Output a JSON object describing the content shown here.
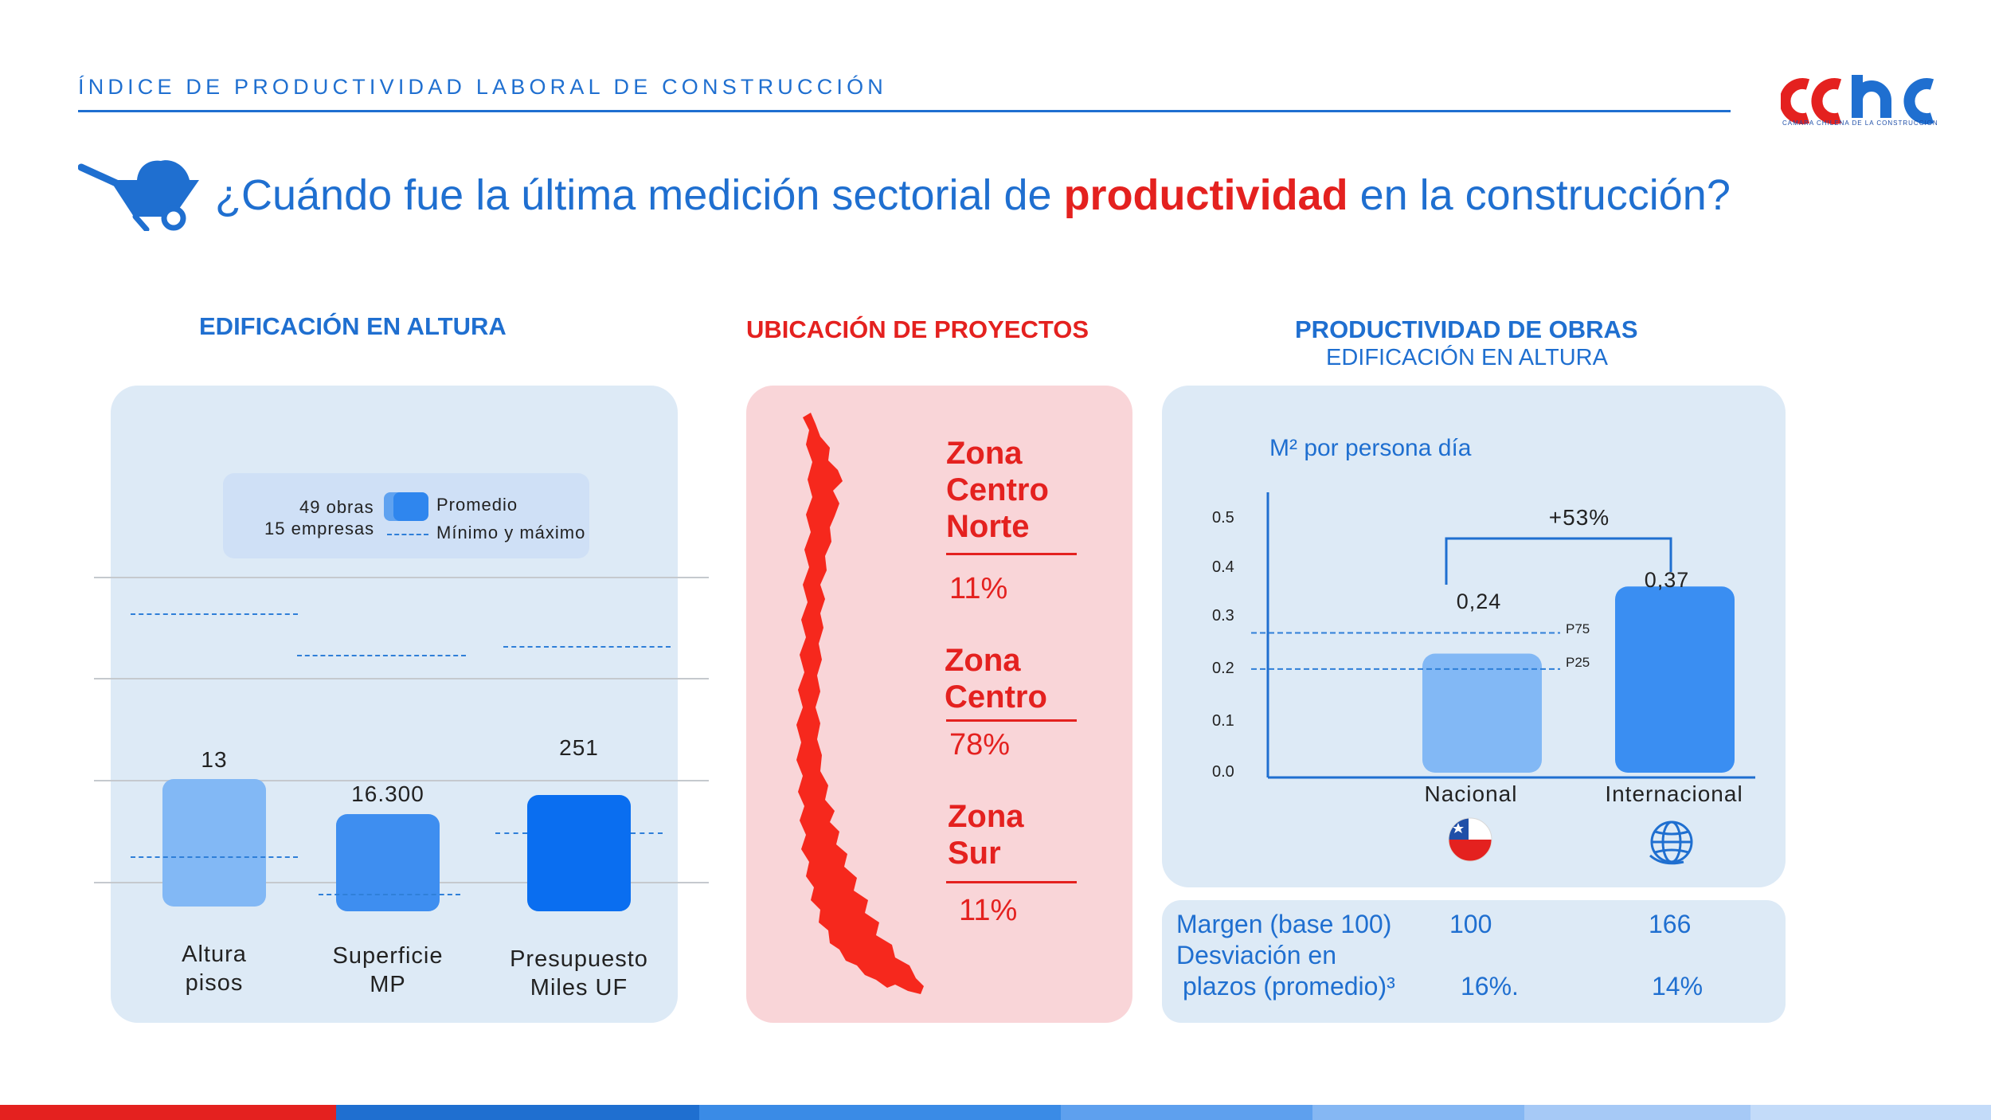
{
  "header": {
    "title": "ÍNDICE DE PRODUCTIVIDAD LABORAL DE CONSTRUCCIÓN",
    "logo_sub": "CAMARA CHILENA DE LA CONSTRUCCION"
  },
  "question": {
    "before": "¿Cuándo fue la última medición sectorial de ",
    "highlight": "productividad",
    "after": " en la construcción?"
  },
  "edificacion": {
    "title": "EDIFICACIÓN EN ALTURA",
    "legend": {
      "obras": "49 obras",
      "empresas": "15 empresas",
      "promedio": "Promedio",
      "minmax": "Mínimo y máximo"
    },
    "bars": [
      {
        "value_label": "13",
        "cat_line1": "Altura",
        "cat_line2": "pisos"
      },
      {
        "value_label": "16.300",
        "cat_line1": "Superficie",
        "cat_line2": "MP"
      },
      {
        "value_label": "251",
        "cat_line1": "Presupuesto",
        "cat_line2": "Miles UF"
      }
    ]
  },
  "ubicacion": {
    "title": "UBICACIÓN DE PROYECTOS",
    "zones": [
      {
        "l1": "Zona",
        "l2": "Centro",
        "l3": "Norte",
        "pct": "11%"
      },
      {
        "l1": "Zona",
        "l2": "Centro",
        "pct": "78%"
      },
      {
        "l1": "Zona",
        "l2": "Sur",
        "pct": "11%"
      }
    ]
  },
  "productividad": {
    "title": "PRODUCTIVIDAD DE OBRAS",
    "subtitle": "EDIFICACIÓN EN ALTURA",
    "unit": "M² por persona día",
    "diff_label": "+53%",
    "p75": "P75",
    "p25": "P25",
    "ticks": [
      "0.5",
      "0.4",
      "0.3",
      "0.2",
      "0.1",
      "0.0"
    ]
  },
  "chart_data": {
    "type": "bar",
    "categories": [
      "Nacional",
      "Internacional"
    ],
    "values": [
      0.24,
      0.37
    ],
    "value_labels": [
      "0,24",
      "0,37"
    ],
    "ylabel": "M² por persona día",
    "ylim": [
      0,
      0.5
    ],
    "reference_lines": [
      {
        "name": "P75",
        "value": 0.28
      },
      {
        "name": "P25",
        "value": 0.21
      }
    ],
    "annotation": "+53%"
  },
  "summary": {
    "row1_label": "Margen (base 100)",
    "row1_nacional": "100",
    "row1_internacional": "166",
    "row2_label_line1": "Desviación en",
    "row2_label_line2": "plazos (promedio)³",
    "row2_nacional": "16%.",
    "row2_internacional": "14%"
  },
  "colors": {
    "brand_blue": "#1f6fd0",
    "brand_red": "#e4211f",
    "panel_blue": "#ddeaf6",
    "panel_red": "#f9d5d8"
  }
}
